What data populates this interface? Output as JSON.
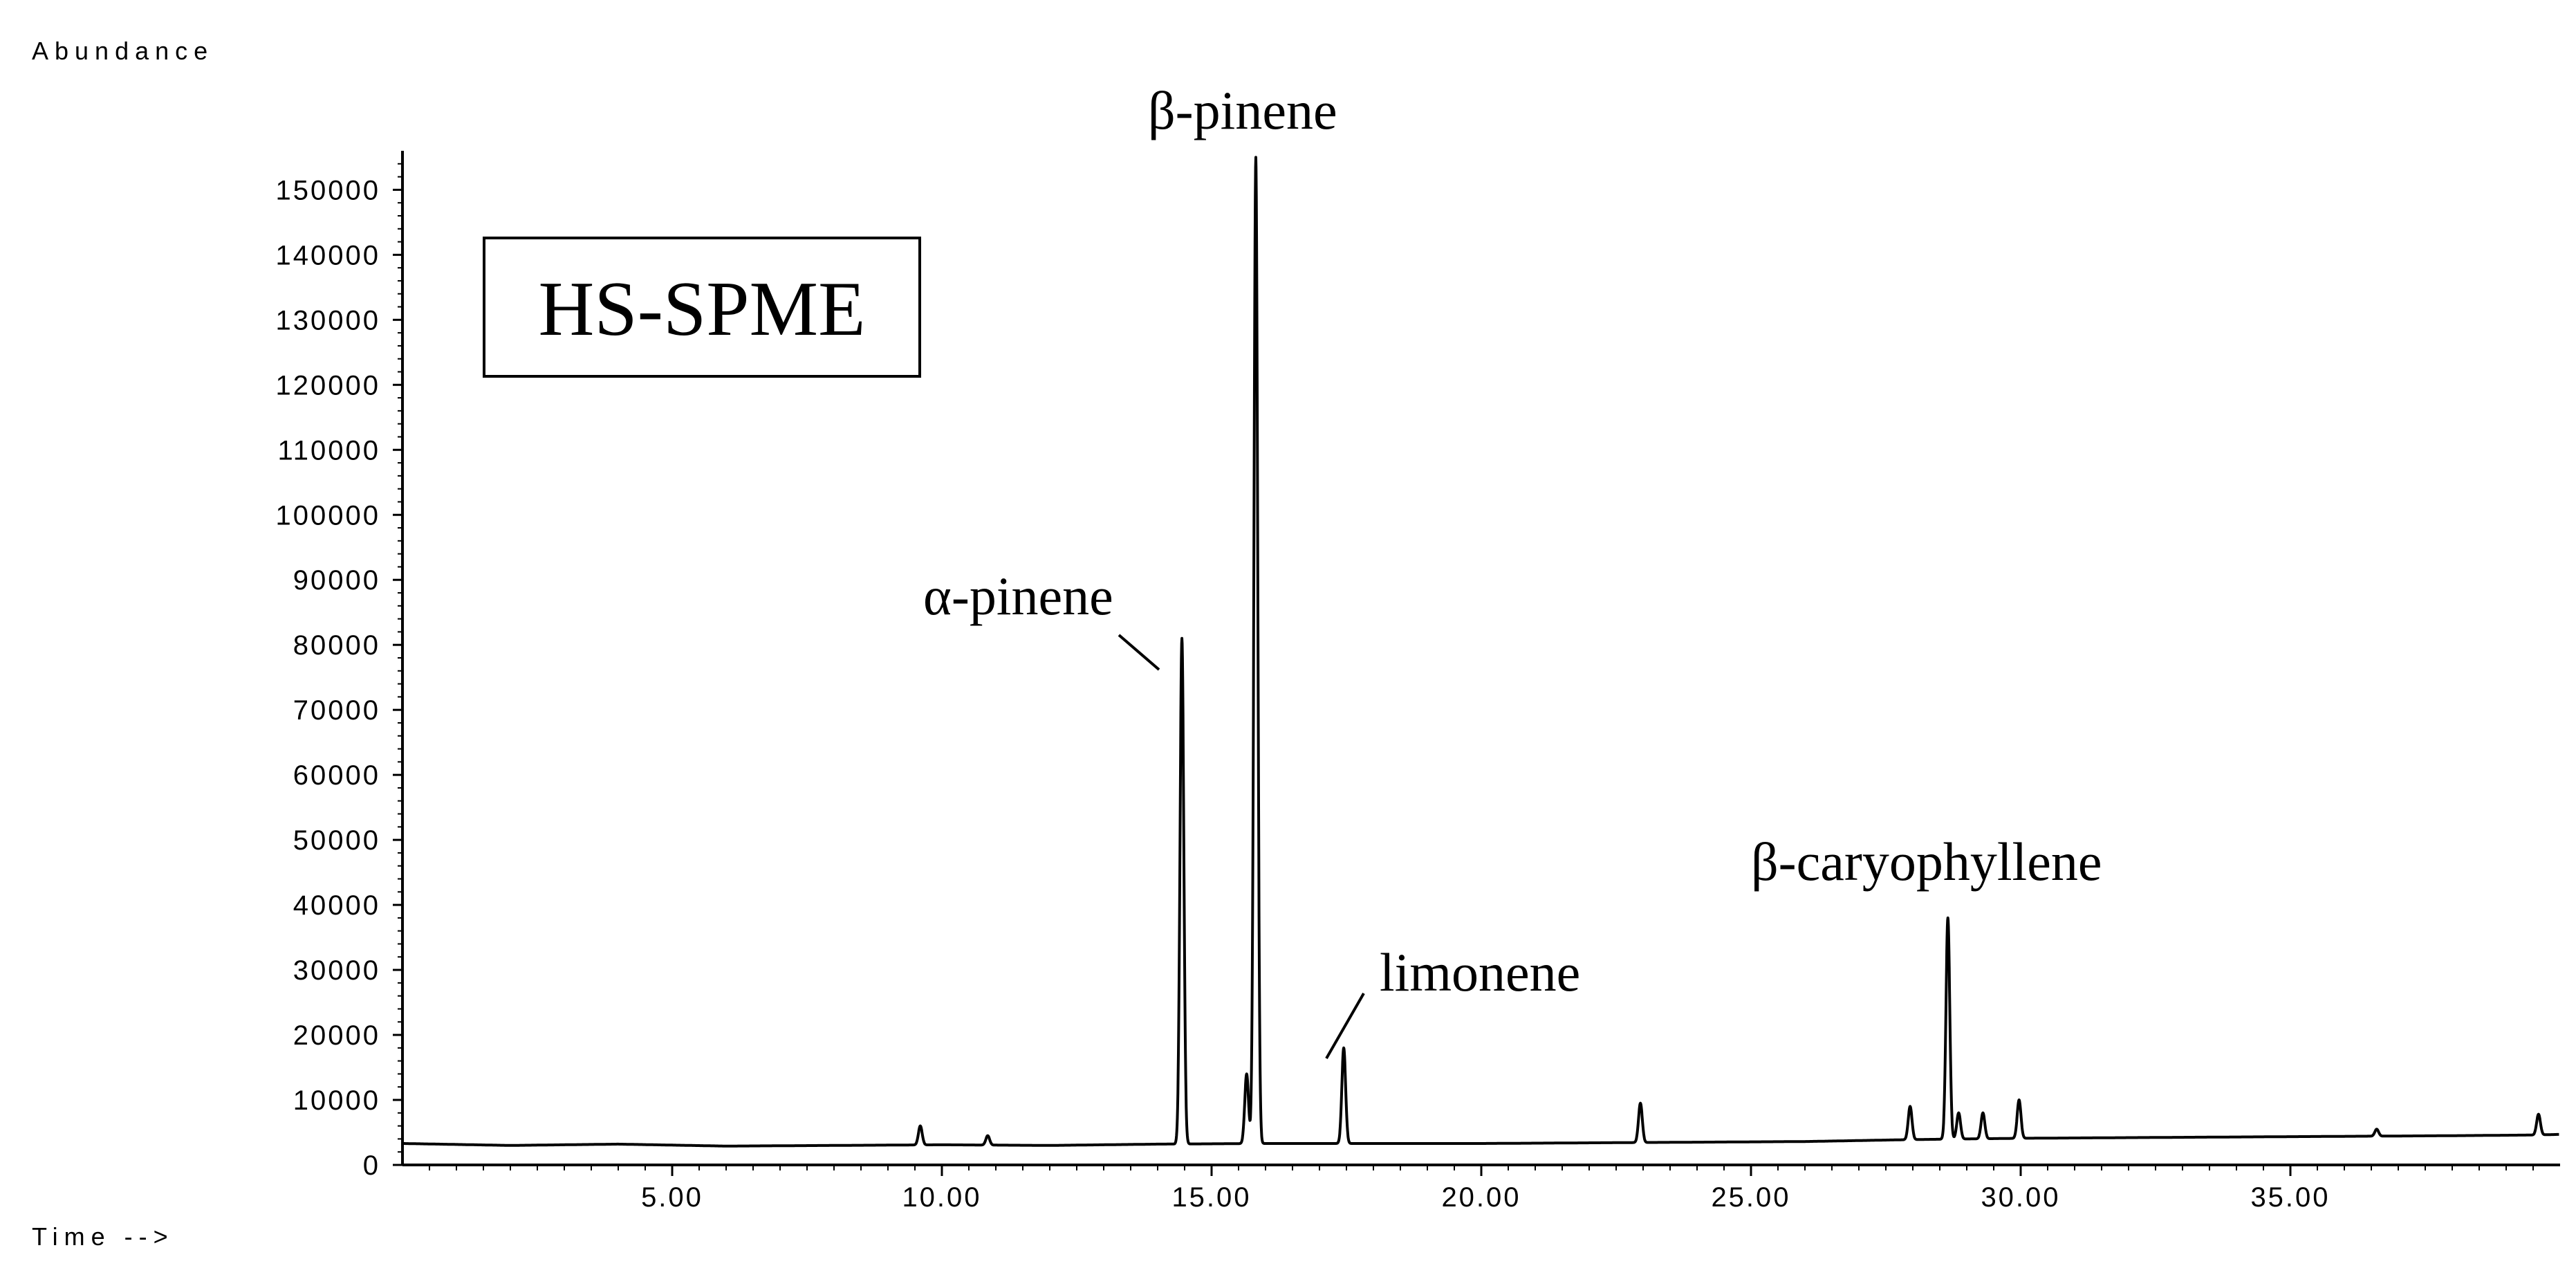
{
  "chart_data": {
    "type": "line",
    "ylabel": "Abundance",
    "xlabel": "Time -->",
    "inset_label": "HS-SPME",
    "xlim": [
      0,
      40
    ],
    "ylim": [
      0,
      156000
    ],
    "x_ticks": [
      5,
      10,
      15,
      20,
      25,
      30,
      35
    ],
    "x_tick_labels": [
      "5.00",
      "10.00",
      "15.00",
      "20.00",
      "25.00",
      "30.00",
      "35.00"
    ],
    "y_ticks": [
      0,
      10000,
      20000,
      30000,
      40000,
      50000,
      60000,
      70000,
      80000,
      90000,
      100000,
      110000,
      120000,
      130000,
      140000,
      150000
    ],
    "y_tick_labels": [
      "0",
      "10000",
      "20000",
      "30000",
      "40000",
      "50000",
      "60000",
      "70000",
      "80000",
      "90000",
      "100000",
      "110000",
      "120000",
      "130000",
      "140000",
      "150000"
    ],
    "grid": false,
    "line_color": "#000000",
    "baseline": [
      {
        "x": 0.0,
        "y": 3300
      },
      {
        "x": 2.0,
        "y": 3000
      },
      {
        "x": 4.0,
        "y": 3200
      },
      {
        "x": 6.0,
        "y": 2900
      },
      {
        "x": 8.0,
        "y": 3000
      },
      {
        "x": 10.0,
        "y": 3100
      },
      {
        "x": 12.0,
        "y": 3000
      },
      {
        "x": 14.0,
        "y": 3200
      },
      {
        "x": 16.0,
        "y": 3300
      },
      {
        "x": 18.0,
        "y": 3300
      },
      {
        "x": 20.0,
        "y": 3300
      },
      {
        "x": 22.0,
        "y": 3400
      },
      {
        "x": 24.0,
        "y": 3500
      },
      {
        "x": 26.0,
        "y": 3600
      },
      {
        "x": 28.0,
        "y": 3900
      },
      {
        "x": 30.0,
        "y": 4100
      },
      {
        "x": 32.0,
        "y": 4200
      },
      {
        "x": 34.0,
        "y": 4300
      },
      {
        "x": 36.0,
        "y": 4400
      },
      {
        "x": 38.0,
        "y": 4500
      },
      {
        "x": 39.5,
        "y": 4600
      },
      {
        "x": 40.0,
        "y": 4700
      }
    ],
    "peaks": [
      {
        "x": 9.6,
        "y": 6000
      },
      {
        "x": 10.85,
        "y": 4500
      },
      {
        "x": 14.45,
        "y": 81000
      },
      {
        "x": 15.65,
        "y": 14000
      },
      {
        "x": 15.82,
        "y": 155000
      },
      {
        "x": 17.45,
        "y": 18000
      },
      {
        "x": 22.95,
        "y": 9500
      },
      {
        "x": 27.95,
        "y": 9000
      },
      {
        "x": 28.65,
        "y": 38000
      },
      {
        "x": 28.85,
        "y": 8000
      },
      {
        "x": 29.3,
        "y": 8000
      },
      {
        "x": 29.97,
        "y": 10000
      },
      {
        "x": 36.6,
        "y": 5500
      },
      {
        "x": 39.6,
        "y": 7800
      }
    ],
    "annotations": [
      {
        "text": "α-pinene",
        "peak_x": 14.45
      },
      {
        "text": "β-pinene",
        "peak_x": 15.82
      },
      {
        "text": "limonene",
        "peak_x": 17.45
      },
      {
        "text": "β-caryophyllene",
        "peak_x": 28.65
      }
    ]
  }
}
